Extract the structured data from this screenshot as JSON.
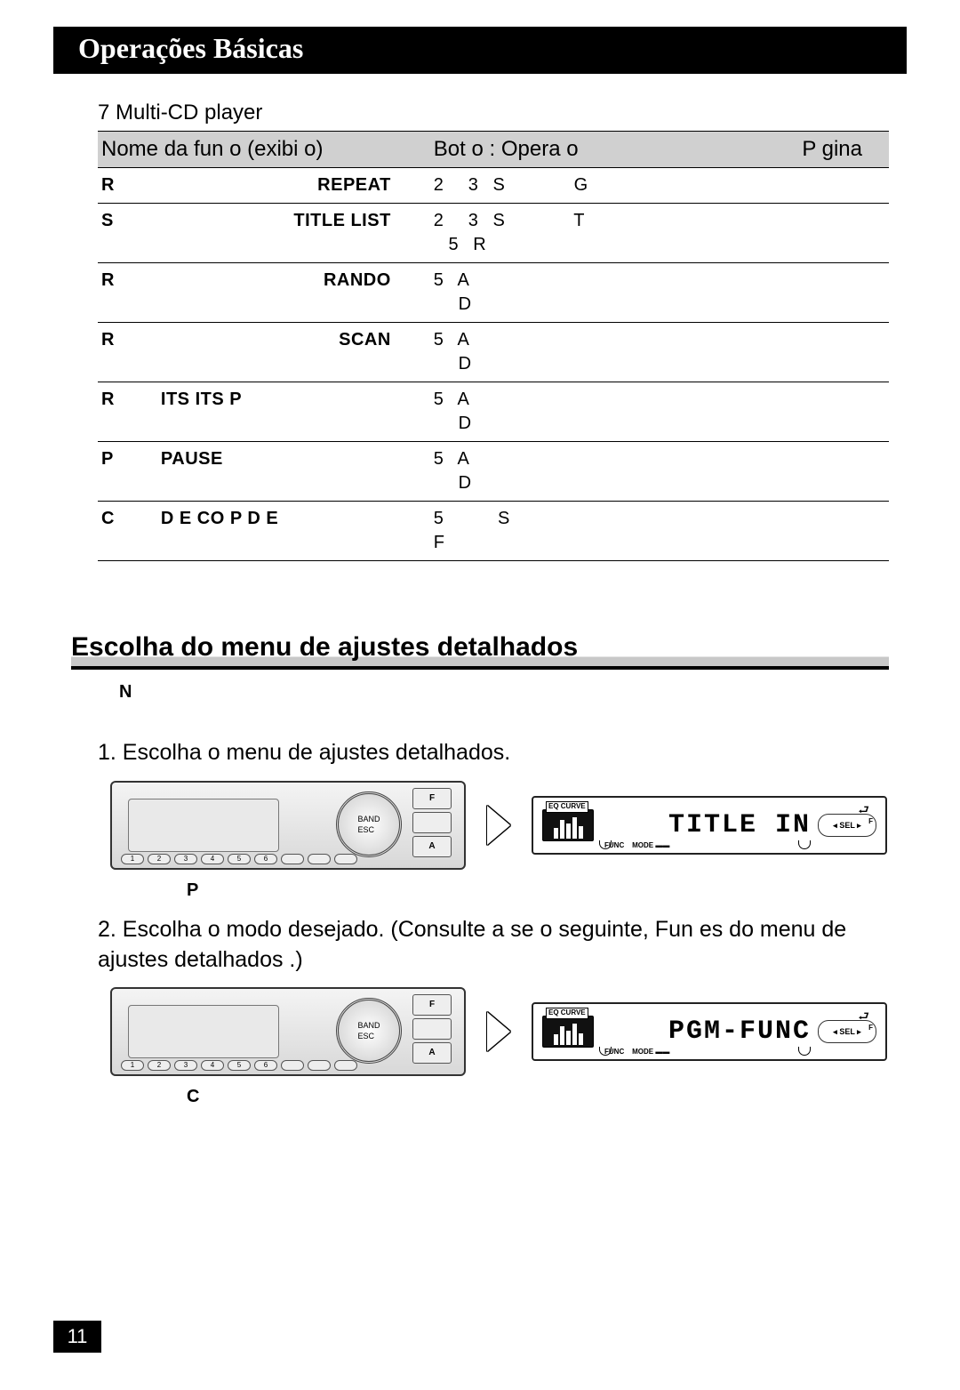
{
  "header": {
    "title": "Operações Básicas"
  },
  "table": {
    "title": "7 Multi-CD player",
    "columns": [
      "Nome da fun  o (exibi  o)",
      "Bot o : Opera  o",
      "P gina"
    ],
    "rows": [
      {
        "letter": "R",
        "name": "REPEAT",
        "op": "2     3   S              G",
        "page": ""
      },
      {
        "letter": "S",
        "name": "TITLE LIST",
        "op": "2     3   S              T\n   5   R",
        "page": ""
      },
      {
        "letter": "R",
        "name": "RANDO",
        "op": "5   A\n     D",
        "page": ""
      },
      {
        "letter": "R",
        "name": "SCAN",
        "op": "5   A\n     D",
        "page": ""
      },
      {
        "letter": "R",
        "name": "ITS  ITS P",
        "op": "5   A\n     D",
        "page": ""
      },
      {
        "letter": "P",
        "name": "PAUSE",
        "op": "5   A\n     D",
        "page": ""
      },
      {
        "letter": "C",
        "name": "D  E  CO  P D  E",
        "op": "5           S\nF",
        "page": ""
      }
    ]
  },
  "section_heading": "Escolha do menu de ajustes detalhados",
  "note": "N",
  "steps": [
    {
      "num": "1.",
      "text": "Escolha o menu de ajustes detalhados.",
      "caption": "P",
      "lcd_text": "TITLE  IN"
    },
    {
      "num": "2.",
      "text": "Escolha o modo desejado. (Consulte a se  o seguinte,  Fun  es do menu de ajustes detalhados .)",
      "caption": "C",
      "lcd_text": "PGM-FUNC"
    }
  ],
  "device": {
    "side_buttons": [
      "F",
      "",
      "A"
    ],
    "knob_label": "BAND\nESC",
    "num_buttons": [
      "1",
      "2",
      "3",
      "4",
      "5",
      "6",
      "",
      "",
      ""
    ]
  },
  "lcd_labels": {
    "eq": "EQ CURVE",
    "func": "FUNC",
    "mode": "MODE",
    "sel": "◂ SEL ▸",
    "f": "F"
  },
  "page_number": "11"
}
